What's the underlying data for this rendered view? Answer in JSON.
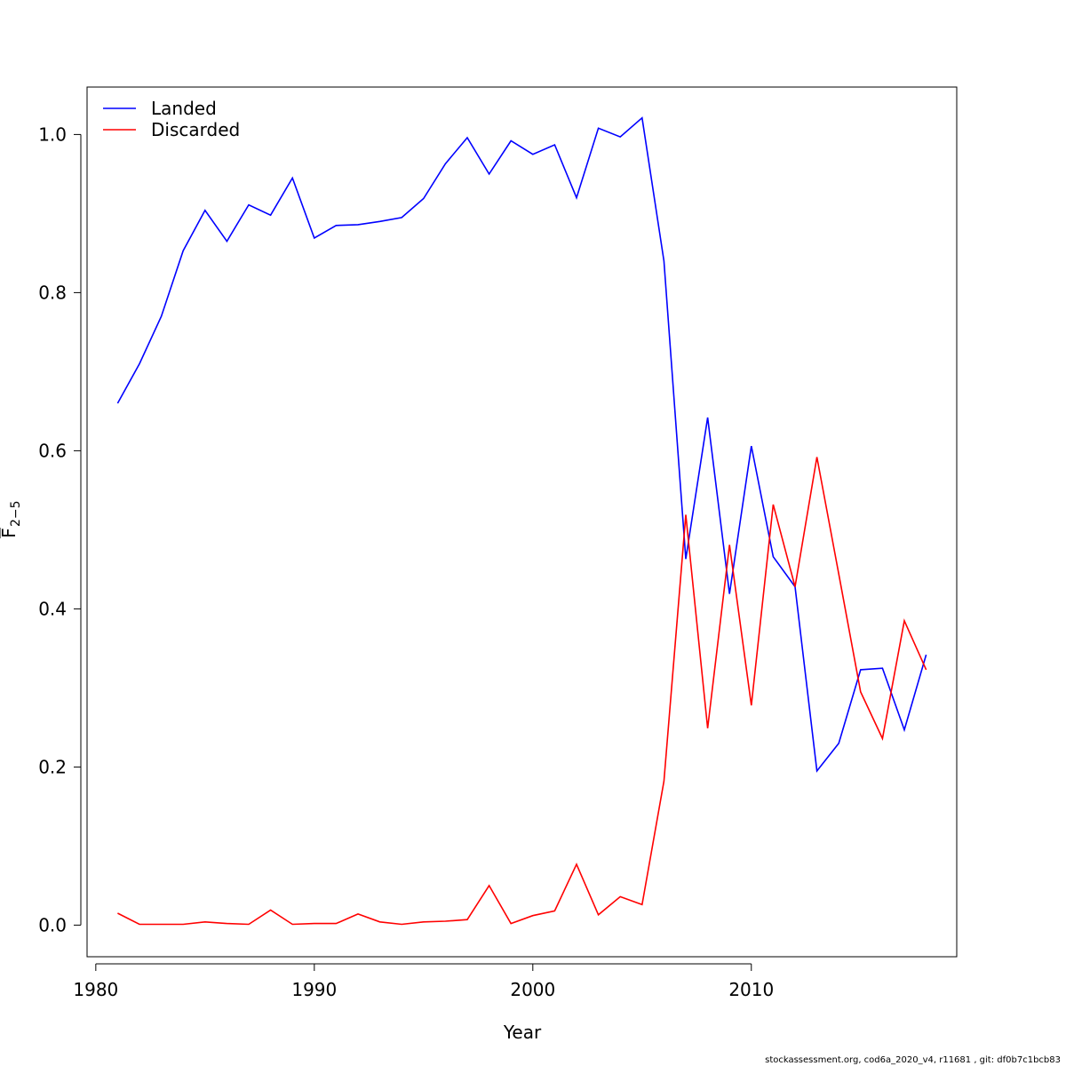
{
  "chart_data": {
    "type": "line",
    "xlabel": "Year",
    "ylabel": {
      "main": "F",
      "sub": "2−5"
    },
    "xlim": [
      1979.6,
      2019.4
    ],
    "ylim": [
      -0.04,
      1.06
    ],
    "x_ticks": [
      1980,
      1990,
      2000,
      2010
    ],
    "y_ticks": [
      0.0,
      0.2,
      0.4,
      0.6,
      0.8,
      1.0
    ],
    "y_tick_labels": [
      "0.0",
      "0.2",
      "0.4",
      "0.6",
      "0.8",
      "1.0"
    ],
    "legend_position": "top-left",
    "x": [
      1981,
      1982,
      1983,
      1984,
      1985,
      1986,
      1987,
      1988,
      1989,
      1990,
      1991,
      1992,
      1993,
      1994,
      1995,
      1996,
      1997,
      1998,
      1999,
      2000,
      2001,
      2002,
      2003,
      2004,
      2005,
      2006,
      2007,
      2008,
      2009,
      2010,
      2011,
      2012,
      2013,
      2014,
      2015,
      2016,
      2017,
      2018
    ],
    "series": [
      {
        "name": "Landed",
        "color": "#0000ff",
        "values": [
          0.66,
          0.71,
          0.77,
          0.853,
          0.904,
          0.865,
          0.911,
          0.898,
          0.945,
          0.869,
          0.885,
          0.886,
          0.89,
          0.895,
          0.919,
          0.963,
          0.996,
          0.95,
          0.992,
          0.975,
          0.987,
          0.92,
          1.008,
          0.997,
          1.021,
          0.84,
          0.463,
          0.642,
          0.419,
          0.606,
          0.466,
          0.428,
          0.195,
          0.23,
          0.323,
          0.325,
          0.247,
          0.342
        ]
      },
      {
        "name": "Discarded",
        "color": "#ff0000",
        "values": [
          0.015,
          0.001,
          0.001,
          0.001,
          0.004,
          0.002,
          0.001,
          0.019,
          0.001,
          0.002,
          0.002,
          0.014,
          0.004,
          0.001,
          0.004,
          0.005,
          0.007,
          0.05,
          0.002,
          0.012,
          0.018,
          0.077,
          0.013,
          0.036,
          0.026,
          0.182,
          0.519,
          0.249,
          0.481,
          0.278,
          0.532,
          0.428,
          0.592,
          0.444,
          0.295,
          0.236,
          0.385,
          0.323
        ]
      }
    ]
  },
  "footer": {
    "text": "stockassessment.org, cod6a_2020_v4, r11681 , git: df0b7c1bcb83"
  }
}
